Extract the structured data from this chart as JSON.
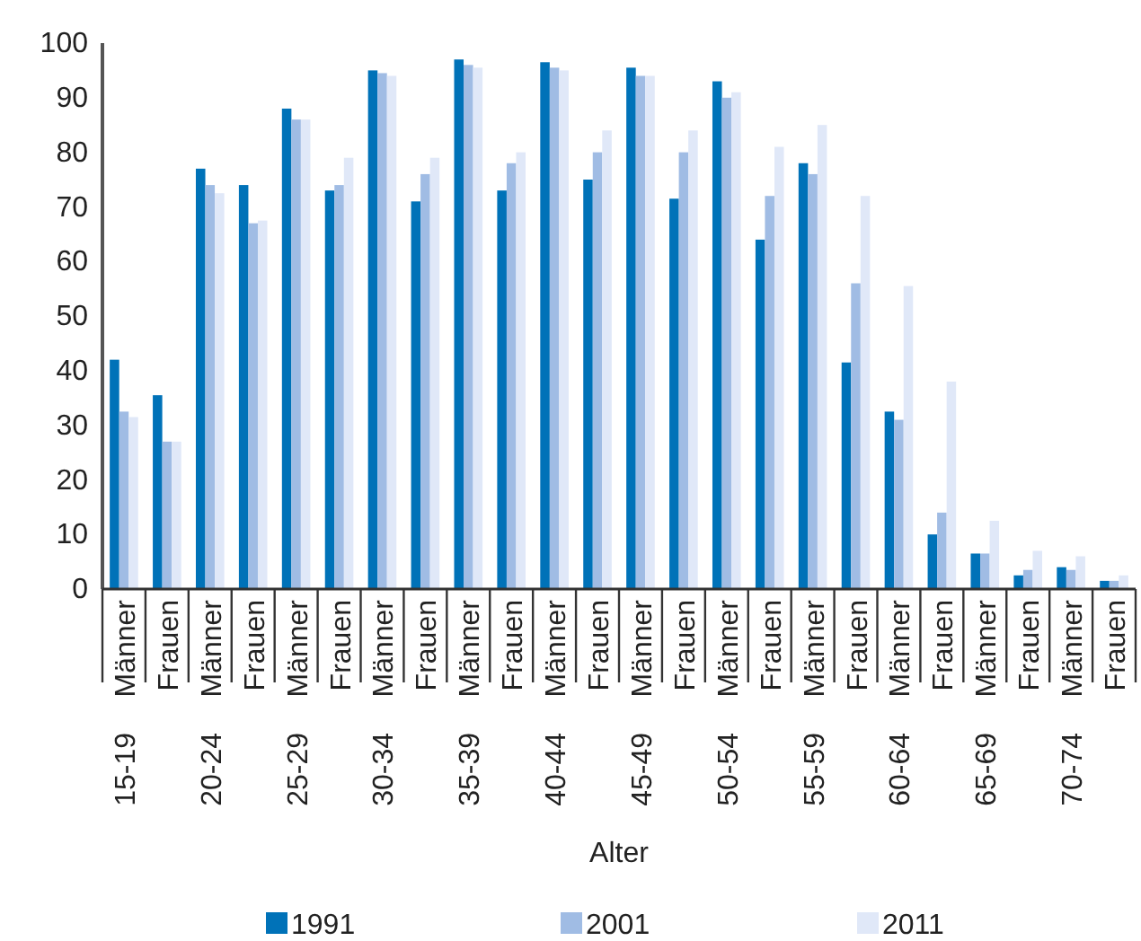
{
  "chart_data": {
    "type": "bar",
    "xlabel": "Alter",
    "categories": [
      "Männer",
      "Frauen",
      "Männer",
      "Frauen",
      "Männer",
      "Frauen",
      "Männer",
      "Frauen",
      "Männer",
      "Frauen",
      "Männer",
      "Frauen",
      "Männer",
      "Frauen",
      "Männer",
      "Frauen",
      "Männer",
      "Frauen",
      "Männer",
      "Frauen",
      "Männer",
      "Frauen",
      "Männer",
      "Frauen"
    ],
    "annotations": [
      "15-19",
      "20-24",
      "25-29",
      "30-34",
      "35-39",
      "40-44",
      "45-49",
      "50-54",
      "55-59",
      "60-64",
      "65-69",
      "70-74"
    ],
    "series": [
      {
        "name": "1991",
        "color": "#0072b8",
        "values": [
          42,
          35.5,
          77,
          74,
          88,
          73,
          95,
          71,
          97,
          73,
          96.5,
          75,
          95.5,
          71.5,
          93,
          64,
          78,
          41.5,
          32.5,
          10,
          6.5,
          2.5,
          4,
          1.5
        ]
      },
      {
        "name": "2001",
        "color": "#a0bce4",
        "values": [
          32.5,
          27,
          74,
          67,
          86,
          74,
          94.5,
          76,
          96,
          78,
          95.5,
          80,
          94,
          80,
          90,
          72,
          76,
          56,
          31,
          14,
          6.5,
          3.5,
          3.5,
          1.5
        ]
      },
      {
        "name": "2011",
        "color": "#e0e8f8",
        "values": [
          31.5,
          27,
          72.5,
          67.5,
          86,
          79,
          94,
          79,
          95.5,
          80,
          95,
          84,
          94,
          84,
          91,
          81,
          85,
          72,
          55.5,
          38,
          12.5,
          7,
          6,
          2.5
        ]
      }
    ],
    "ylim": [
      0,
      100
    ],
    "yticks": [
      0,
      10,
      20,
      30,
      40,
      50,
      60,
      70,
      80,
      90,
      100
    ],
    "grid": false,
    "legend": "bottom"
  }
}
